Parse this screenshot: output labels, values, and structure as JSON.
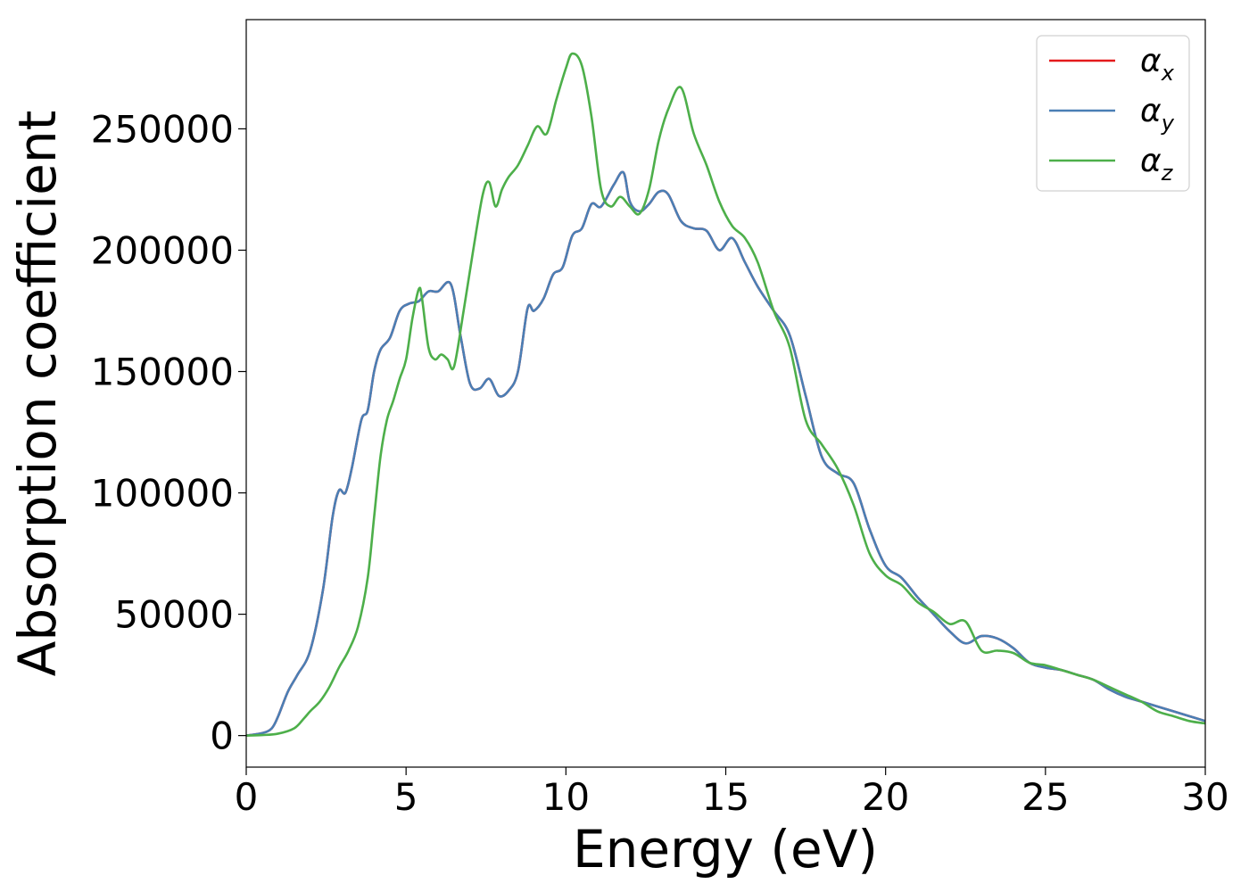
{
  "chart_data": {
    "type": "line",
    "title": "",
    "xlabel": "Energy (eV)",
    "ylabel": "Absorption coefficient",
    "xlim": [
      0,
      30
    ],
    "ylim": [
      -13000,
      295000
    ],
    "xticks": [
      0,
      5,
      10,
      15,
      20,
      25,
      30
    ],
    "yticks": [
      0,
      50000,
      100000,
      150000,
      200000,
      250000
    ],
    "grid": false,
    "legend_position": "top-right",
    "series": [
      {
        "name": "α",
        "subscript": "x",
        "color": "#e41a1c",
        "x": [
          0,
          0.5,
          0.8,
          1.0,
          1.3,
          1.6,
          2.0,
          2.4,
          2.7,
          2.9,
          3.1,
          3.3,
          3.6,
          3.8,
          4.0,
          4.2,
          4.5,
          4.8,
          5.1,
          5.4,
          5.7,
          6.0,
          6.4,
          6.7,
          7.0,
          7.3,
          7.6,
          7.9,
          8.2,
          8.5,
          8.8,
          9.0,
          9.3,
          9.6,
          9.9,
          10.2,
          10.5,
          10.8,
          11.1,
          11.5,
          11.8,
          12.0,
          12.3,
          12.6,
          12.9,
          13.2,
          13.6,
          14.0,
          14.4,
          14.8,
          15.2,
          15.6,
          16.0,
          16.5,
          17.0,
          17.5,
          18.0,
          18.5,
          19.0,
          19.5,
          20.0,
          20.5,
          21.0,
          21.5,
          22.0,
          22.5,
          23.0,
          23.5,
          24.0,
          24.5,
          25.0,
          25.5,
          26.0,
          26.5,
          27.0,
          27.5,
          28.0,
          28.5,
          29.0,
          29.5,
          30.0
        ],
        "values": [
          0,
          1000,
          3000,
          8000,
          18000,
          25000,
          35000,
          60000,
          90000,
          101000,
          100000,
          110000,
          130000,
          134000,
          150000,
          159000,
          164000,
          175000,
          178000,
          179000,
          183000,
          183000,
          186000,
          165000,
          145000,
          143000,
          147000,
          140000,
          142000,
          150000,
          176000,
          175000,
          180000,
          190000,
          193000,
          206000,
          209000,
          219000,
          218000,
          227000,
          232000,
          220000,
          216000,
          219000,
          224000,
          223000,
          212000,
          209000,
          208000,
          200000,
          205000,
          195000,
          185000,
          175000,
          165000,
          140000,
          115000,
          108000,
          104000,
          85000,
          70000,
          65000,
          57000,
          50000,
          43000,
          38000,
          41000,
          40000,
          36000,
          30000,
          28000,
          27000,
          25000,
          23000,
          19000,
          16000,
          14000,
          12000,
          10000,
          8000,
          6000
        ]
      },
      {
        "name": "α",
        "subscript": "y",
        "color": "#4a7fb5",
        "x": [
          0,
          0.5,
          0.8,
          1.0,
          1.3,
          1.6,
          2.0,
          2.4,
          2.7,
          2.9,
          3.1,
          3.3,
          3.6,
          3.8,
          4.0,
          4.2,
          4.5,
          4.8,
          5.1,
          5.4,
          5.7,
          6.0,
          6.4,
          6.7,
          7.0,
          7.3,
          7.6,
          7.9,
          8.2,
          8.5,
          8.8,
          9.0,
          9.3,
          9.6,
          9.9,
          10.2,
          10.5,
          10.8,
          11.1,
          11.5,
          11.8,
          12.0,
          12.3,
          12.6,
          12.9,
          13.2,
          13.6,
          14.0,
          14.4,
          14.8,
          15.2,
          15.6,
          16.0,
          16.5,
          17.0,
          17.5,
          18.0,
          18.5,
          19.0,
          19.5,
          20.0,
          20.5,
          21.0,
          21.5,
          22.0,
          22.5,
          23.0,
          23.5,
          24.0,
          24.5,
          25.0,
          25.5,
          26.0,
          26.5,
          27.0,
          27.5,
          28.0,
          28.5,
          29.0,
          29.5,
          30.0
        ],
        "values": [
          0,
          1000,
          3000,
          8000,
          18000,
          25000,
          35000,
          60000,
          90000,
          101000,
          100000,
          110000,
          130000,
          134000,
          150000,
          159000,
          164000,
          175000,
          178000,
          179000,
          183000,
          183000,
          186000,
          165000,
          145000,
          143000,
          147000,
          140000,
          142000,
          150000,
          176000,
          175000,
          180000,
          190000,
          193000,
          206000,
          209000,
          219000,
          218000,
          227000,
          232000,
          220000,
          216000,
          219000,
          224000,
          223000,
          212000,
          209000,
          208000,
          200000,
          205000,
          195000,
          185000,
          175000,
          165000,
          140000,
          115000,
          108000,
          104000,
          85000,
          70000,
          65000,
          57000,
          50000,
          43000,
          38000,
          41000,
          40000,
          36000,
          30000,
          28000,
          27000,
          25000,
          23000,
          19000,
          16000,
          14000,
          12000,
          10000,
          8000,
          6000
        ]
      },
      {
        "name": "α",
        "subscript": "z",
        "color": "#4daf4a",
        "x": [
          0,
          0.5,
          1.0,
          1.5,
          1.8,
          2.0,
          2.3,
          2.6,
          2.9,
          3.2,
          3.5,
          3.8,
          4.0,
          4.2,
          4.4,
          4.6,
          4.8,
          5.0,
          5.2,
          5.4,
          5.5,
          5.7,
          5.9,
          6.1,
          6.3,
          6.5,
          6.8,
          7.1,
          7.4,
          7.6,
          7.8,
          8.0,
          8.2,
          8.5,
          8.8,
          9.1,
          9.4,
          9.7,
          10.0,
          10.2,
          10.5,
          10.8,
          11.1,
          11.4,
          11.7,
          12.0,
          12.3,
          12.6,
          12.9,
          13.2,
          13.6,
          14.0,
          14.4,
          14.8,
          15.2,
          15.6,
          16.0,
          16.5,
          17.0,
          17.5,
          18.0,
          18.5,
          19.0,
          19.5,
          20.0,
          20.5,
          21.0,
          21.5,
          22.0,
          22.5,
          23.0,
          23.5,
          24.0,
          24.5,
          25.0,
          25.5,
          26.0,
          26.5,
          27.0,
          27.5,
          28.0,
          28.5,
          29.0,
          29.5,
          30.0
        ],
        "values": [
          0,
          200,
          800,
          3000,
          7000,
          10000,
          14000,
          20000,
          28000,
          35000,
          45000,
          65000,
          90000,
          115000,
          130000,
          138000,
          147000,
          155000,
          172000,
          184000,
          180000,
          160000,
          155000,
          157000,
          155000,
          152000,
          175000,
          200000,
          223000,
          228000,
          218000,
          225000,
          230000,
          235000,
          243000,
          251000,
          248000,
          262000,
          275000,
          281000,
          276000,
          255000,
          225000,
          218000,
          222000,
          218000,
          215000,
          225000,
          245000,
          258000,
          267000,
          248000,
          235000,
          220000,
          210000,
          205000,
          195000,
          175000,
          160000,
          130000,
          120000,
          110000,
          95000,
          75000,
          66000,
          62000,
          55000,
          51000,
          46000,
          47000,
          35000,
          35000,
          34000,
          30000,
          29000,
          27000,
          25000,
          23000,
          20000,
          17000,
          14000,
          10000,
          8000,
          6000,
          5000
        ]
      }
    ]
  }
}
